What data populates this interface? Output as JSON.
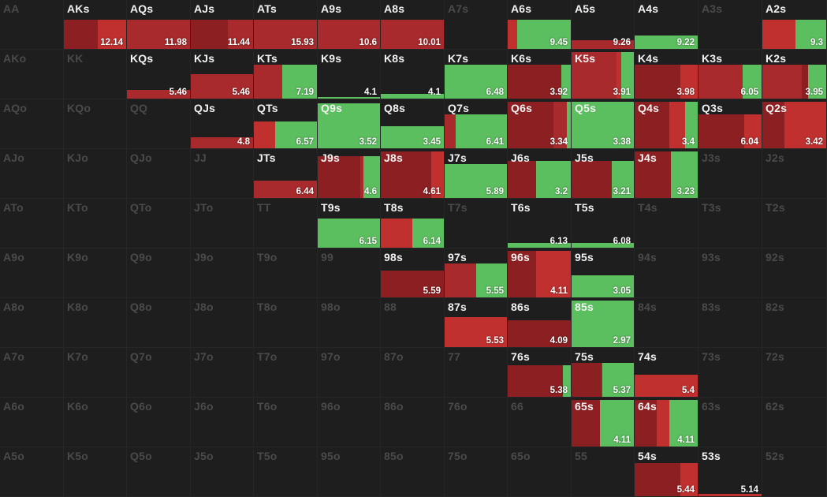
{
  "colors": {
    "dark_red": "#8c1f22",
    "red": "#a82a2c",
    "light_red": "#c0302f",
    "green": "#5cbf5f",
    "inactive_label": "#4a4a4a",
    "active_label": "#f2f2f2",
    "background": "#1e1e1e"
  },
  "range_matrix": [
    [
      {
        "hand": "AA",
        "active": false
      },
      {
        "hand": "AKs",
        "active": true,
        "ev": "12.14",
        "fill": 0.6,
        "segs": [
          [
            "dark_red",
            0.55
          ],
          [
            "light_red",
            0.45
          ]
        ]
      },
      {
        "hand": "AQs",
        "active": true,
        "ev": "11.98",
        "fill": 0.6,
        "segs": [
          [
            "red",
            1
          ]
        ]
      },
      {
        "hand": "AJs",
        "active": true,
        "ev": "11.44",
        "fill": 0.6,
        "segs": [
          [
            "dark_red",
            0.6
          ],
          [
            "red",
            0.4
          ]
        ]
      },
      {
        "hand": "ATs",
        "active": true,
        "ev": "15.93",
        "fill": 0.6,
        "segs": [
          [
            "red",
            1
          ]
        ]
      },
      {
        "hand": "A9s",
        "active": true,
        "ev": "10.6",
        "fill": 0.6,
        "segs": [
          [
            "red",
            1
          ]
        ]
      },
      {
        "hand": "A8s",
        "active": true,
        "ev": "10.01",
        "fill": 0.6,
        "segs": [
          [
            "red",
            1
          ]
        ]
      },
      {
        "hand": "A7s",
        "active": false
      },
      {
        "hand": "A6s",
        "active": true,
        "ev": "9.45",
        "fill": 0.6,
        "segs": [
          [
            "light_red",
            0.15
          ],
          [
            "green",
            0.85
          ]
        ]
      },
      {
        "hand": "A5s",
        "active": true,
        "ev": "9.26",
        "fill": 0.18,
        "segs": [
          [
            "red",
            1
          ]
        ]
      },
      {
        "hand": "A4s",
        "active": true,
        "ev": "9.22",
        "fill": 0.28,
        "segs": [
          [
            "green",
            1
          ]
        ]
      },
      {
        "hand": "A3s",
        "active": false
      },
      {
        "hand": "A2s",
        "active": true,
        "ev": "9.3",
        "fill": 0.6,
        "segs": [
          [
            "light_red",
            0.52
          ],
          [
            "green",
            0.48
          ]
        ]
      }
    ],
    [
      {
        "hand": "AKo",
        "active": false
      },
      {
        "hand": "KK",
        "active": false
      },
      {
        "hand": "KQs",
        "active": true,
        "ev": "5.46",
        "fill": 0.18,
        "segs": [
          [
            "red",
            1
          ]
        ]
      },
      {
        "hand": "KJs",
        "active": true,
        "ev": "5.46",
        "fill": 0.5,
        "segs": [
          [
            "red",
            1
          ]
        ]
      },
      {
        "hand": "KTs",
        "active": true,
        "ev": "7.19",
        "fill": 0.7,
        "segs": [
          [
            "red",
            0.45
          ],
          [
            "green",
            0.55
          ]
        ]
      },
      {
        "hand": "K9s",
        "active": true,
        "ev": "4.1",
        "fill": 0.04,
        "segs": [
          [
            "green",
            1
          ]
        ]
      },
      {
        "hand": "K8s",
        "active": true,
        "ev": "4.1",
        "fill": 0.1,
        "segs": [
          [
            "green",
            1
          ]
        ]
      },
      {
        "hand": "K7s",
        "active": true,
        "ev": "6.48",
        "fill": 0.7,
        "segs": [
          [
            "green",
            1
          ]
        ]
      },
      {
        "hand": "K6s",
        "active": true,
        "ev": "3.92",
        "fill": 0.7,
        "segs": [
          [
            "dark_red",
            0.85
          ],
          [
            "green",
            0.15
          ]
        ]
      },
      {
        "hand": "K5s",
        "active": true,
        "ev": "3.91",
        "fill": 0.95,
        "segs": [
          [
            "red",
            0.72
          ],
          [
            "light_red",
            0.08
          ],
          [
            "green",
            0.2
          ]
        ]
      },
      {
        "hand": "K4s",
        "active": true,
        "ev": "3.98",
        "fill": 0.7,
        "segs": [
          [
            "dark_red",
            0.72
          ],
          [
            "light_red",
            0.28
          ]
        ]
      },
      {
        "hand": "K3s",
        "active": true,
        "ev": "6.05",
        "fill": 0.7,
        "segs": [
          [
            "red",
            0.7
          ],
          [
            "green",
            0.3
          ]
        ]
      },
      {
        "hand": "K2s",
        "active": true,
        "ev": "3.95",
        "fill": 0.7,
        "segs": [
          [
            "red",
            0.62
          ],
          [
            "dark_red",
            0.1
          ],
          [
            "green",
            0.28
          ]
        ]
      }
    ],
    [
      {
        "hand": "AQo",
        "active": false
      },
      {
        "hand": "KQo",
        "active": false
      },
      {
        "hand": "QQ",
        "active": false
      },
      {
        "hand": "QJs",
        "active": true,
        "ev": "4.8",
        "fill": 0.22,
        "segs": [
          [
            "red",
            1
          ]
        ]
      },
      {
        "hand": "QTs",
        "active": true,
        "ev": "6.57",
        "fill": 0.55,
        "segs": [
          [
            "light_red",
            0.34
          ],
          [
            "green",
            0.66
          ]
        ]
      },
      {
        "hand": "Q9s",
        "active": true,
        "ev": "3.52",
        "fill": 0.92,
        "segs": [
          [
            "green",
            1
          ]
        ]
      },
      {
        "hand": "Q8s",
        "active": true,
        "ev": "3.45",
        "fill": 0.45,
        "segs": [
          [
            "green",
            1
          ]
        ]
      },
      {
        "hand": "Q7s",
        "active": true,
        "ev": "6.41",
        "fill": 0.7,
        "segs": [
          [
            "red",
            0.18
          ],
          [
            "green",
            0.82
          ]
        ]
      },
      {
        "hand": "Q6s",
        "active": true,
        "ev": "3.34",
        "fill": 0.95,
        "segs": [
          [
            "dark_red",
            0.72
          ],
          [
            "red",
            0.22
          ],
          [
            "green",
            0.06
          ]
        ]
      },
      {
        "hand": "Q5s",
        "active": true,
        "ev": "3.38",
        "fill": 0.95,
        "segs": [
          [
            "green",
            1
          ]
        ]
      },
      {
        "hand": "Q4s",
        "active": true,
        "ev": "3.4",
        "fill": 0.95,
        "segs": [
          [
            "dark_red",
            0.55
          ],
          [
            "light_red",
            0.25
          ],
          [
            "green",
            0.2
          ]
        ]
      },
      {
        "hand": "Q3s",
        "active": true,
        "ev": "6.04",
        "fill": 0.7,
        "segs": [
          [
            "dark_red",
            0.72
          ],
          [
            "light_red",
            0.28
          ]
        ]
      },
      {
        "hand": "Q2s",
        "active": true,
        "ev": "3.42",
        "fill": 0.95,
        "segs": [
          [
            "dark_red",
            0.35
          ],
          [
            "light_red",
            0.65
          ]
        ]
      }
    ],
    [
      {
        "hand": "AJo",
        "active": false
      },
      {
        "hand": "KJo",
        "active": false
      },
      {
        "hand": "QJo",
        "active": false
      },
      {
        "hand": "JJ",
        "active": false
      },
      {
        "hand": "JTs",
        "active": true,
        "ev": "6.44",
        "fill": 0.35,
        "segs": [
          [
            "red",
            1
          ]
        ]
      },
      {
        "hand": "J9s",
        "active": true,
        "ev": "4.6",
        "fill": 0.85,
        "segs": [
          [
            "dark_red",
            0.68
          ],
          [
            "red",
            0.05
          ],
          [
            "green",
            0.27
          ]
        ]
      },
      {
        "hand": "J8s",
        "active": true,
        "ev": "4.61",
        "fill": 0.95,
        "segs": [
          [
            "dark_red",
            0.8
          ],
          [
            "light_red",
            0.2
          ]
        ]
      },
      {
        "hand": "J7s",
        "active": true,
        "ev": "5.89",
        "fill": 0.7,
        "segs": [
          [
            "green",
            1
          ]
        ]
      },
      {
        "hand": "J6s",
        "active": true,
        "ev": "3.2",
        "fill": 0.75,
        "segs": [
          [
            "dark_red",
            0.45
          ],
          [
            "green",
            0.55
          ]
        ]
      },
      {
        "hand": "J5s",
        "active": true,
        "ev": "3.21",
        "fill": 0.75,
        "segs": [
          [
            "dark_red",
            0.65
          ],
          [
            "green",
            0.35
          ]
        ]
      },
      {
        "hand": "J4s",
        "active": true,
        "ev": "3.23",
        "fill": 0.95,
        "segs": [
          [
            "dark_red",
            0.58
          ],
          [
            "green",
            0.42
          ]
        ]
      },
      {
        "hand": "J3s",
        "active": false
      },
      {
        "hand": "J2s",
        "active": false
      }
    ],
    [
      {
        "hand": "ATo",
        "active": false
      },
      {
        "hand": "KTo",
        "active": false
      },
      {
        "hand": "QTo",
        "active": false
      },
      {
        "hand": "JTo",
        "active": false
      },
      {
        "hand": "TT",
        "active": false
      },
      {
        "hand": "T9s",
        "active": true,
        "ev": "6.15",
        "fill": 0.6,
        "segs": [
          [
            "green",
            1
          ]
        ]
      },
      {
        "hand": "T8s",
        "active": true,
        "ev": "6.14",
        "fill": 0.6,
        "segs": [
          [
            "light_red",
            0.5
          ],
          [
            "green",
            0.5
          ]
        ]
      },
      {
        "hand": "T7s",
        "active": false
      },
      {
        "hand": "T6s",
        "active": true,
        "ev": "6.13",
        "fill": 0.1,
        "segs": [
          [
            "green",
            1
          ]
        ]
      },
      {
        "hand": "T5s",
        "active": true,
        "ev": "6.08",
        "fill": 0.1,
        "segs": [
          [
            "green",
            1
          ]
        ]
      },
      {
        "hand": "T4s",
        "active": false
      },
      {
        "hand": "T3s",
        "active": false
      },
      {
        "hand": "T2s",
        "active": false
      }
    ],
    [
      {
        "hand": "A9o",
        "active": false
      },
      {
        "hand": "K9o",
        "active": false
      },
      {
        "hand": "Q9o",
        "active": false
      },
      {
        "hand": "J9o",
        "active": false
      },
      {
        "hand": "T9o",
        "active": false
      },
      {
        "hand": "99",
        "active": false
      },
      {
        "hand": "98s",
        "active": true,
        "ev": "5.59",
        "fill": 0.55,
        "segs": [
          [
            "dark_red",
            1
          ]
        ]
      },
      {
        "hand": "97s",
        "active": true,
        "ev": "5.55",
        "fill": 0.7,
        "segs": [
          [
            "red",
            0.5
          ],
          [
            "green",
            0.5
          ]
        ]
      },
      {
        "hand": "96s",
        "active": true,
        "ev": "4.11",
        "fill": 0.95,
        "segs": [
          [
            "dark_red",
            0.45
          ],
          [
            "light_red",
            0.55
          ]
        ]
      },
      {
        "hand": "95s",
        "active": true,
        "ev": "3.05",
        "fill": 0.45,
        "segs": [
          [
            "green",
            1
          ]
        ]
      },
      {
        "hand": "94s",
        "active": false
      },
      {
        "hand": "93s",
        "active": false
      },
      {
        "hand": "92s",
        "active": false
      }
    ],
    [
      {
        "hand": "A8o",
        "active": false
      },
      {
        "hand": "K8o",
        "active": false
      },
      {
        "hand": "Q8o",
        "active": false
      },
      {
        "hand": "J8o",
        "active": false
      },
      {
        "hand": "T8o",
        "active": false
      },
      {
        "hand": "98o",
        "active": false
      },
      {
        "hand": "88",
        "active": false
      },
      {
        "hand": "87s",
        "active": true,
        "ev": "5.53",
        "fill": 0.62,
        "segs": [
          [
            "light_red",
            1
          ]
        ]
      },
      {
        "hand": "86s",
        "active": true,
        "ev": "4.09",
        "fill": 0.55,
        "segs": [
          [
            "dark_red",
            1
          ]
        ]
      },
      {
        "hand": "85s",
        "active": true,
        "ev": "2.97",
        "fill": 0.95,
        "segs": [
          [
            "green",
            1
          ]
        ]
      },
      {
        "hand": "84s",
        "active": false
      },
      {
        "hand": "83s",
        "active": false
      },
      {
        "hand": "82s",
        "active": false
      }
    ],
    [
      {
        "hand": "A7o",
        "active": false
      },
      {
        "hand": "K7o",
        "active": false
      },
      {
        "hand": "Q7o",
        "active": false
      },
      {
        "hand": "J7o",
        "active": false
      },
      {
        "hand": "T7o",
        "active": false
      },
      {
        "hand": "97o",
        "active": false
      },
      {
        "hand": "87o",
        "active": false
      },
      {
        "hand": "77",
        "active": false
      },
      {
        "hand": "76s",
        "active": true,
        "ev": "5.38",
        "fill": 0.65,
        "segs": [
          [
            "dark_red",
            0.88
          ],
          [
            "green",
            0.12
          ]
        ]
      },
      {
        "hand": "75s",
        "active": true,
        "ev": "5.37",
        "fill": 0.7,
        "segs": [
          [
            "dark_red",
            0.48
          ],
          [
            "red",
            0.02
          ],
          [
            "green",
            0.5
          ]
        ]
      },
      {
        "hand": "74s",
        "active": true,
        "ev": "5.4",
        "fill": 0.45,
        "segs": [
          [
            "light_red",
            1
          ]
        ]
      },
      {
        "hand": "73s",
        "active": false
      },
      {
        "hand": "72s",
        "active": false
      }
    ],
    [
      {
        "hand": "A6o",
        "active": false
      },
      {
        "hand": "K6o",
        "active": false
      },
      {
        "hand": "Q6o",
        "active": false
      },
      {
        "hand": "J6o",
        "active": false
      },
      {
        "hand": "T6o",
        "active": false
      },
      {
        "hand": "96o",
        "active": false
      },
      {
        "hand": "86o",
        "active": false
      },
      {
        "hand": "76o",
        "active": false
      },
      {
        "hand": "66",
        "active": false
      },
      {
        "hand": "65s",
        "active": true,
        "ev": "4.11",
        "fill": 0.95,
        "segs": [
          [
            "dark_red",
            0.45
          ],
          [
            "green",
            0.55
          ]
        ]
      },
      {
        "hand": "64s",
        "active": true,
        "ev": "4.11",
        "fill": 0.95,
        "segs": [
          [
            "dark_red",
            0.35
          ],
          [
            "light_red",
            0.2
          ],
          [
            "green",
            0.45
          ]
        ]
      },
      {
        "hand": "63s",
        "active": false
      },
      {
        "hand": "62s",
        "active": false
      }
    ],
    [
      {
        "hand": "A5o",
        "active": false
      },
      {
        "hand": "K5o",
        "active": false
      },
      {
        "hand": "Q5o",
        "active": false
      },
      {
        "hand": "J5o",
        "active": false
      },
      {
        "hand": "T5o",
        "active": false
      },
      {
        "hand": "95o",
        "active": false
      },
      {
        "hand": "85o",
        "active": false
      },
      {
        "hand": "75o",
        "active": false
      },
      {
        "hand": "65o",
        "active": false
      },
      {
        "hand": "55",
        "active": false
      },
      {
        "hand": "54s",
        "active": true,
        "ev": "5.44",
        "fill": 0.68,
        "segs": [
          [
            "dark_red",
            0.72
          ],
          [
            "light_red",
            0.28
          ]
        ]
      },
      {
        "hand": "53s",
        "active": true,
        "ev": "5.14",
        "fill": 0.05,
        "segs": [
          [
            "light_red",
            1
          ]
        ]
      },
      {
        "hand": "52s",
        "active": false
      }
    ]
  ]
}
